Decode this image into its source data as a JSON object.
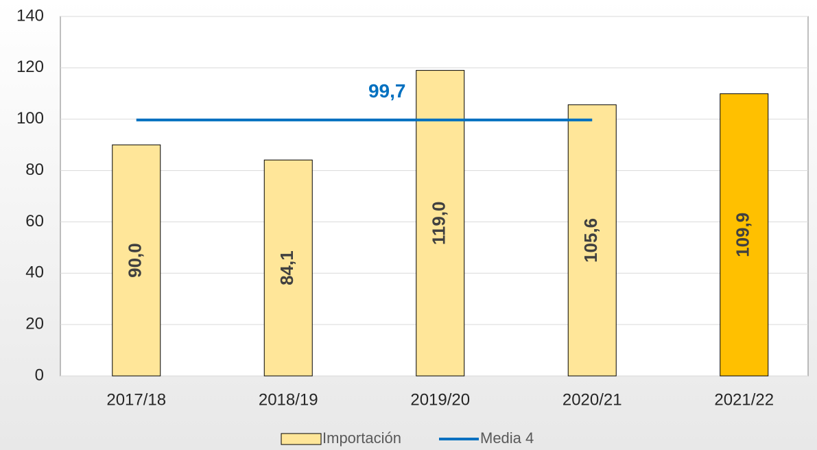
{
  "chart_data": {
    "type": "bar",
    "categories": [
      "2017/18",
      "2018/19",
      "2019/20",
      "2020/21",
      "2021/22"
    ],
    "series": [
      {
        "name": "Importación",
        "type": "bar",
        "colors": [
          "#ffe699",
          "#ffe699",
          "#ffe699",
          "#ffe699",
          "#ffc000"
        ],
        "color": "#ffe699",
        "values": [
          90.0,
          84.1,
          119.0,
          105.6,
          109.9
        ],
        "value_labels": [
          "90,0",
          "84,1",
          "119,0",
          "105,6",
          "109,9"
        ]
      },
      {
        "name": "Media 4",
        "type": "line",
        "color": "#0070c0",
        "values": [
          99.7,
          99.7,
          99.7,
          99.7,
          null
        ],
        "value_labels": [
          null,
          "99,7",
          null,
          null,
          null
        ]
      }
    ],
    "ylim": [
      0,
      140
    ],
    "yticks": [
      0,
      20,
      40,
      60,
      80,
      100,
      120,
      140
    ],
    "grid": true,
    "legend": "bottom"
  }
}
